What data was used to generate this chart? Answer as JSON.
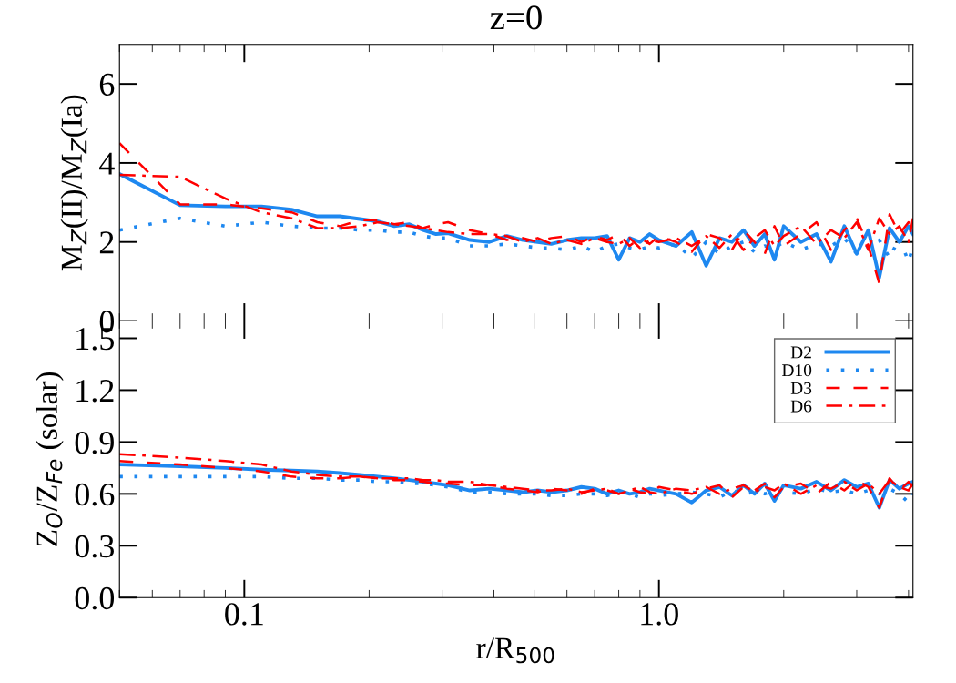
{
  "chart_data": [
    {
      "type": "line",
      "title": "z=0",
      "ylabel": "M$_{Z}$(II)/M$_{Z}$(Ia)",
      "log": "x",
      "tick_labels": "y",
      "grid": false,
      "x": [
        0.05,
        0.07,
        0.09,
        0.11,
        0.13,
        0.15,
        0.17,
        0.19,
        0.21,
        0.23,
        0.25,
        0.27,
        0.29,
        0.31,
        0.35,
        0.39,
        0.43,
        0.47,
        0.51,
        0.55,
        0.6,
        0.65,
        0.7,
        0.75,
        0.8,
        0.85,
        0.9,
        0.95,
        1.0,
        1.1,
        1.2,
        1.3,
        1.4,
        1.5,
        1.6,
        1.7,
        1.8,
        1.9,
        2.0,
        2.2,
        2.4,
        2.6,
        2.8,
        3.0,
        3.2,
        3.4,
        3.6,
        3.8,
        4.0,
        4.1
      ],
      "xlim": [
        0.05,
        4.1
      ],
      "ylim": [
        0,
        7
      ],
      "yticks": [
        0,
        2,
        4,
        6
      ],
      "series": [
        {
          "color": "#1e88f0",
          "line_style": "solid",
          "values": [
            3.72,
            2.93,
            2.9,
            2.9,
            2.82,
            2.65,
            2.65,
            2.58,
            2.52,
            2.4,
            2.45,
            2.3,
            2.2,
            2.22,
            2.05,
            2.0,
            2.15,
            2.05,
            2.0,
            1.95,
            2.05,
            2.1,
            2.1,
            2.15,
            1.55,
            2.1,
            2.0,
            2.2,
            2.05,
            1.9,
            2.25,
            1.4,
            2.1,
            2.0,
            2.3,
            1.9,
            2.2,
            1.55,
            2.4,
            2.0,
            2.2,
            1.5,
            2.4,
            1.7,
            2.3,
            1.1,
            2.35,
            2.0,
            2.4,
            2.2
          ]
        },
        {
          "color": "#1e88f0",
          "line_style": "dotted",
          "values": [
            2.3,
            2.6,
            2.4,
            2.5,
            2.4,
            2.35,
            2.35,
            2.3,
            2.3,
            2.25,
            2.25,
            2.15,
            2.1,
            2.1,
            1.9,
            1.9,
            1.95,
            1.9,
            1.85,
            1.85,
            1.8,
            1.9,
            1.75,
            1.9,
            1.95,
            1.85,
            1.8,
            1.9,
            1.85,
            1.95,
            1.6,
            2.0,
            1.7,
            1.9,
            2.0,
            1.75,
            1.9,
            1.85,
            2.0,
            1.8,
            1.95,
            1.9,
            2.1,
            1.7,
            1.9,
            2.05,
            1.6,
            2.1,
            1.5,
            1.9
          ]
        },
        {
          "color": "#ff0000",
          "line_style": "dashed",
          "values": [
            4.5,
            2.95,
            2.95,
            2.85,
            2.75,
            2.5,
            2.4,
            2.55,
            2.55,
            2.45,
            2.5,
            2.35,
            2.45,
            2.5,
            2.3,
            2.2,
            2.05,
            2.1,
            2.0,
            2.1,
            2.15,
            2.0,
            2.15,
            2.05,
            2.2,
            1.9,
            2.1,
            1.95,
            2.15,
            2.0,
            1.75,
            2.2,
            2.1,
            1.8,
            2.3,
            2.0,
            1.7,
            2.4,
            1.9,
            2.2,
            2.5,
            1.8,
            2.3,
            2.6,
            1.9,
            0.95,
            2.7,
            2.2,
            2.5,
            2.3
          ]
        },
        {
          "color": "#ff0000",
          "line_style": "dashdot",
          "values": [
            3.7,
            3.65,
            3.1,
            2.75,
            2.6,
            2.35,
            2.35,
            2.4,
            2.5,
            2.45,
            2.4,
            2.35,
            2.3,
            2.25,
            2.2,
            2.2,
            2.15,
            2.0,
            2.1,
            1.95,
            2.05,
            1.95,
            2.1,
            2.0,
            1.95,
            2.1,
            1.85,
            2.05,
            2.0,
            2.1,
            1.9,
            2.15,
            1.85,
            2.2,
            1.8,
            2.1,
            2.3,
            1.9,
            2.15,
            2.4,
            1.95,
            2.3,
            2.1,
            2.5,
            1.8,
            2.6,
            2.2,
            2.4,
            2.0,
            2.6
          ]
        }
      ]
    },
    {
      "type": "line",
      "xlabel": "r/R$_{500}$",
      "ylabel": "Z$_{O}$/Z$_{Fe}$ (solar)",
      "log": "x",
      "legend": "top right",
      "grid": false,
      "x": [
        0.05,
        0.07,
        0.09,
        0.11,
        0.13,
        0.15,
        0.17,
        0.19,
        0.21,
        0.23,
        0.25,
        0.27,
        0.29,
        0.31,
        0.35,
        0.39,
        0.43,
        0.47,
        0.51,
        0.55,
        0.6,
        0.65,
        0.7,
        0.75,
        0.8,
        0.85,
        0.9,
        0.95,
        1.0,
        1.1,
        1.2,
        1.3,
        1.4,
        1.5,
        1.6,
        1.7,
        1.8,
        1.9,
        2.0,
        2.2,
        2.4,
        2.6,
        2.8,
        3.0,
        3.2,
        3.4,
        3.6,
        3.8,
        4.0,
        4.1
      ],
      "xlim": [
        0.05,
        4.1
      ],
      "xticks": [
        {
          "value": 0.1,
          "label": "0.1"
        },
        {
          "value": 1,
          "label": "1.0"
        }
      ],
      "ylim": [
        0,
        1.6
      ],
      "yticks": [
        {
          "value": 0,
          "label": "0.0"
        },
        0.3,
        0.6,
        0.9,
        1.2,
        1.5
      ],
      "series": [
        {
          "name": "D2",
          "color": "#1e88f0",
          "line_style": "solid",
          "values": [
            0.77,
            0.76,
            0.75,
            0.74,
            0.735,
            0.73,
            0.72,
            0.71,
            0.7,
            0.69,
            0.68,
            0.67,
            0.66,
            0.65,
            0.62,
            0.63,
            0.62,
            0.61,
            0.62,
            0.61,
            0.62,
            0.64,
            0.63,
            0.6,
            0.62,
            0.6,
            0.61,
            0.63,
            0.62,
            0.6,
            0.55,
            0.62,
            0.64,
            0.59,
            0.65,
            0.6,
            0.66,
            0.56,
            0.65,
            0.63,
            0.67,
            0.62,
            0.68,
            0.64,
            0.66,
            0.52,
            0.68,
            0.63,
            0.66,
            0.67
          ]
        },
        {
          "name": "D10",
          "color": "#1e88f0",
          "line_style": "dotted",
          "values": [
            0.7,
            0.7,
            0.7,
            0.7,
            0.69,
            0.69,
            0.68,
            0.68,
            0.67,
            0.67,
            0.66,
            0.66,
            0.65,
            0.64,
            0.61,
            0.61,
            0.6,
            0.6,
            0.6,
            0.59,
            0.59,
            0.6,
            0.6,
            0.59,
            0.61,
            0.6,
            0.58,
            0.6,
            0.59,
            0.6,
            0.61,
            0.6,
            0.58,
            0.62,
            0.6,
            0.61,
            0.6,
            0.62,
            0.61,
            0.6,
            0.63,
            0.61,
            0.62,
            0.6,
            0.62,
            0.6,
            0.63,
            0.6,
            0.55,
            0.6
          ]
        },
        {
          "name": "D3",
          "color": "#ff0000",
          "line_style": "dashed",
          "values": [
            0.79,
            0.77,
            0.75,
            0.73,
            0.7,
            0.69,
            0.69,
            0.7,
            0.69,
            0.68,
            0.68,
            0.67,
            0.66,
            0.66,
            0.65,
            0.65,
            0.63,
            0.62,
            0.61,
            0.63,
            0.62,
            0.6,
            0.63,
            0.62,
            0.6,
            0.63,
            0.61,
            0.6,
            0.64,
            0.62,
            0.6,
            0.63,
            0.65,
            0.58,
            0.64,
            0.62,
            0.66,
            0.58,
            0.64,
            0.66,
            0.6,
            0.67,
            0.62,
            0.68,
            0.64,
            0.52,
            0.69,
            0.62,
            0.67,
            0.64
          ]
        },
        {
          "name": "D6",
          "color": "#ff0000",
          "line_style": "dashdot",
          "values": [
            0.83,
            0.81,
            0.79,
            0.77,
            0.73,
            0.71,
            0.7,
            0.7,
            0.69,
            0.69,
            0.69,
            0.68,
            0.68,
            0.67,
            0.67,
            0.65,
            0.64,
            0.63,
            0.62,
            0.62,
            0.63,
            0.61,
            0.62,
            0.63,
            0.6,
            0.62,
            0.64,
            0.61,
            0.6,
            0.63,
            0.62,
            0.64,
            0.6,
            0.63,
            0.65,
            0.61,
            0.64,
            0.62,
            0.66,
            0.6,
            0.65,
            0.63,
            0.67,
            0.62,
            0.66,
            0.6,
            0.68,
            0.64,
            0.62,
            0.66
          ]
        }
      ]
    }
  ]
}
